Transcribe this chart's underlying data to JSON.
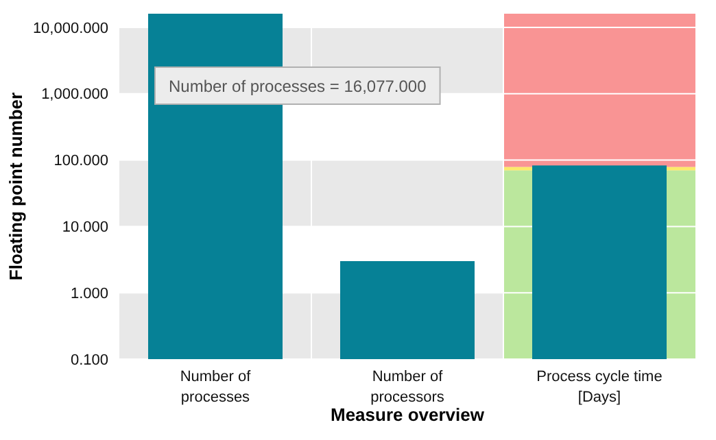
{
  "chart_data": {
    "type": "bar",
    "xlabel": "Measure overview",
    "ylabel": "Floating point number",
    "categories": [
      "Number of processes",
      "Number of processors",
      "Process cycle time [Days]"
    ],
    "values": [
      16077,
      3,
      83
    ],
    "color": "#068196",
    "log": true,
    "grid": "y",
    "ylim": [
      0.1,
      16077
    ],
    "yticks": [
      {
        "value": 0.1,
        "label": "0.100"
      },
      {
        "value": 1,
        "label": "1.000"
      },
      {
        "value": 10,
        "label": "10.000"
      },
      {
        "value": 100,
        "label": "100.000"
      },
      {
        "value": 1000,
        "label": "1,000.000"
      },
      {
        "value": 10000,
        "label": "10,000.000"
      }
    ],
    "bands": [
      {
        "axis": "y",
        "from": 0.1,
        "to": 70,
        "color": "#bbe79d"
      },
      {
        "axis": "y",
        "from": 70,
        "to": 79,
        "color": "#fce96a"
      },
      {
        "axis": "y",
        "from": 79,
        "to": 16077,
        "color": "#f99494"
      }
    ],
    "annotations": [
      "Number of processes = 16,077.000"
    ]
  }
}
